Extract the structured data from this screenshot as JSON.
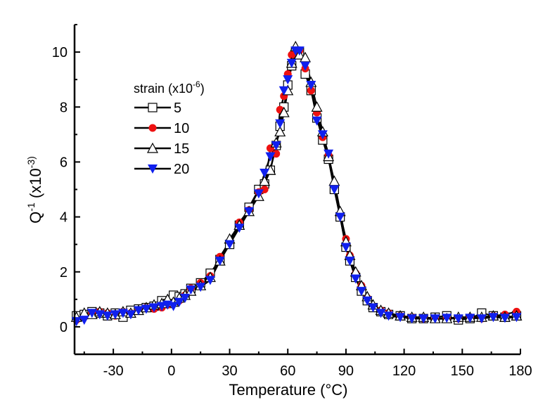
{
  "chart_data": {
    "type": "line",
    "title": "",
    "xlabel": "Temperature (°C)",
    "xlabel_parts": {
      "pre": "Temperature (",
      "sup": "o",
      "post": "C)"
    },
    "ylabel": "Q^-1 (x10^-3)",
    "ylabel_parts": {
      "base": "Q",
      "sup1": "-1",
      "mid": "(x10",
      "sup2": "-3",
      "post": ")"
    },
    "xlim": [
      -50,
      180
    ],
    "ylim": [
      -1,
      11
    ],
    "xticks": [
      -30,
      0,
      30,
      60,
      90,
      120,
      150,
      180
    ],
    "xtick_labels": [
      "-30",
      "0",
      "30",
      "60",
      "90",
      "120",
      "150",
      "180"
    ],
    "yticks": [
      0,
      2,
      4,
      6,
      8,
      10
    ],
    "ytick_labels": [
      "0",
      "2",
      "4",
      "6",
      "8",
      "10"
    ],
    "grid": false,
    "legend": {
      "placement": "top-left",
      "title_parts": {
        "pre": "strain (x10",
        "sup": "-6",
        "post": ")"
      },
      "entries": [
        "5",
        "10",
        "15",
        "20"
      ]
    },
    "x": [
      -49,
      -45,
      -41,
      -37,
      -33,
      -29,
      -25,
      -21,
      -17,
      -13,
      -9,
      -5,
      -2,
      1,
      4,
      7,
      10,
      15,
      20,
      25,
      30,
      35,
      40,
      45,
      48,
      51,
      54,
      56,
      58,
      60,
      62,
      64,
      66,
      69,
      72,
      75,
      78,
      81,
      84,
      87,
      90,
      92,
      95,
      98,
      101,
      104,
      108,
      112,
      118,
      124,
      130,
      136,
      142,
      148,
      154,
      160,
      166,
      172,
      178
    ],
    "series": [
      {
        "name": "5",
        "marker": "square-open",
        "color": "#000000",
        "values": [
          0.4,
          0.45,
          0.55,
          0.5,
          0.4,
          0.5,
          0.35,
          0.6,
          0.65,
          0.7,
          0.75,
          0.95,
          0.85,
          1.15,
          1.1,
          1.2,
          1.4,
          1.6,
          1.95,
          2.45,
          3.0,
          3.7,
          4.35,
          5.0,
          5.2,
          5.7,
          6.6,
          7.3,
          8.0,
          8.8,
          9.5,
          10.0,
          10.0,
          9.2,
          8.6,
          7.6,
          6.8,
          6.1,
          5.0,
          4.0,
          2.9,
          2.4,
          1.8,
          1.3,
          0.95,
          0.7,
          0.55,
          0.45,
          0.4,
          0.3,
          0.3,
          0.35,
          0.4,
          0.25,
          0.3,
          0.5,
          0.4,
          0.35,
          0.4
        ]
      },
      {
        "name": "10",
        "marker": "circle-filled",
        "color": "#ee1111",
        "values": [
          0.25,
          0.35,
          0.5,
          0.55,
          0.5,
          0.4,
          0.55,
          0.5,
          0.6,
          0.7,
          0.65,
          0.7,
          0.8,
          0.85,
          0.95,
          1.15,
          1.4,
          1.6,
          1.85,
          2.55,
          3.1,
          3.8,
          4.25,
          4.9,
          5.0,
          6.5,
          6.3,
          7.9,
          8.4,
          9.2,
          9.9,
          10.0,
          10.05,
          9.4,
          8.6,
          7.8,
          6.9,
          6.25,
          5.2,
          4.1,
          3.2,
          2.6,
          1.95,
          1.5,
          1.05,
          0.75,
          0.6,
          0.5,
          0.4,
          0.35,
          0.3,
          0.28,
          0.3,
          0.3,
          0.35,
          0.3,
          0.4,
          0.45,
          0.55
        ]
      },
      {
        "name": "15",
        "marker": "triangle-up-open",
        "color": "#000000",
        "values": [
          0.35,
          0.5,
          0.45,
          0.55,
          0.5,
          0.45,
          0.55,
          0.5,
          0.6,
          0.7,
          0.8,
          0.85,
          1.0,
          0.9,
          1.05,
          1.15,
          1.3,
          1.5,
          1.8,
          2.4,
          3.2,
          3.7,
          4.2,
          4.75,
          5.3,
          5.7,
          6.7,
          7.1,
          7.8,
          8.6,
          9.6,
          10.2,
          9.9,
          9.8,
          8.9,
          8.0,
          7.1,
          6.2,
          5.3,
          4.2,
          3.1,
          2.6,
          2.0,
          1.5,
          1.1,
          0.8,
          0.6,
          0.5,
          0.4,
          0.35,
          0.35,
          0.3,
          0.3,
          0.35,
          0.35,
          0.35,
          0.4,
          0.35,
          0.4
        ]
      },
      {
        "name": "20",
        "marker": "triangle-down-filled",
        "color": "#1020ee",
        "values": [
          0.2,
          0.25,
          0.5,
          0.45,
          0.4,
          0.45,
          0.5,
          0.45,
          0.6,
          0.65,
          0.7,
          0.75,
          0.8,
          0.75,
          0.9,
          1.05,
          1.35,
          1.45,
          1.7,
          2.4,
          3.0,
          3.6,
          4.2,
          4.85,
          5.6,
          6.2,
          6.6,
          7.4,
          8.6,
          9.0,
          9.6,
          10.05,
          10.05,
          9.5,
          8.8,
          7.5,
          7.0,
          6.3,
          5.0,
          4.0,
          2.9,
          2.4,
          1.75,
          1.3,
          0.95,
          0.7,
          0.5,
          0.4,
          0.35,
          0.3,
          0.3,
          0.3,
          0.32,
          0.3,
          0.32,
          0.3,
          0.35,
          0.32,
          0.35
        ]
      }
    ]
  }
}
